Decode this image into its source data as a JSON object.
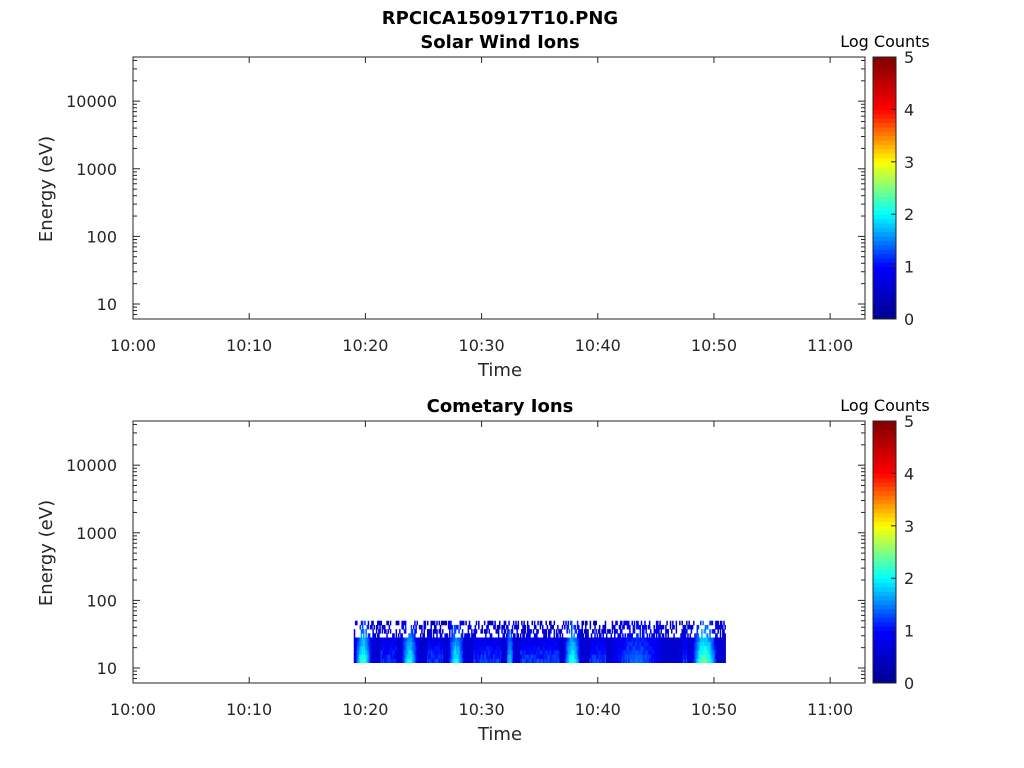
{
  "figure": {
    "title": "RPCICA150917T10.PNG"
  },
  "colormap": {
    "name": "jet",
    "stops": [
      "#00008f",
      "#0000ff",
      "#00ffff",
      "#ffff00",
      "#ff0000",
      "#800000"
    ]
  },
  "chart_data": [
    {
      "type": "heatmap",
      "title": "Solar Wind Ions",
      "xlabel": "Time",
      "ylabel": "Energy (eV)",
      "y_scale": "log",
      "ylim": [
        6,
        45000
      ],
      "xlim": [
        "10:00",
        "11:03"
      ],
      "x_ticks": [
        "10:00",
        "10:10",
        "10:20",
        "10:30",
        "10:40",
        "10:50",
        "11:00"
      ],
      "y_ticks": [
        "10",
        "100",
        "1000",
        "10000"
      ],
      "colorbar": {
        "label": "Log Counts",
        "range": [
          0,
          5
        ],
        "ticks": [
          "0",
          "1",
          "2",
          "3",
          "4",
          "5"
        ]
      },
      "data": []
    },
    {
      "type": "heatmap",
      "title": "Cometary Ions",
      "xlabel": "Time",
      "ylabel": "Energy (eV)",
      "y_scale": "log",
      "ylim": [
        6,
        45000
      ],
      "xlim": [
        "10:00",
        "11:03"
      ],
      "x_ticks": [
        "10:00",
        "10:10",
        "10:20",
        "10:30",
        "10:40",
        "10:50",
        "11:00"
      ],
      "y_ticks": [
        "10",
        "100",
        "1000",
        "10000"
      ],
      "colorbar": {
        "label": "Log Counts",
        "range": [
          0,
          5
        ],
        "ticks": [
          "0",
          "1",
          "2",
          "3",
          "4",
          "5"
        ]
      },
      "data_time_range": [
        "10:19",
        "10:51"
      ],
      "data_energy_range": [
        12,
        50
      ],
      "data": [
        {
          "start": "10:19",
          "end": "10:21",
          "max_log_counts": 2.2
        },
        {
          "start": "10:23",
          "end": "10:25",
          "max_log_counts": 2.0
        },
        {
          "start": "10:27",
          "end": "10:29",
          "max_log_counts": 2.0
        },
        {
          "start": "10:32",
          "end": "10:33",
          "max_log_counts": 1.8
        },
        {
          "start": "10:37",
          "end": "10:39",
          "max_log_counts": 2.1
        },
        {
          "start": "10:41",
          "end": "10:47",
          "max_log_counts": 1.4
        },
        {
          "start": "10:48",
          "end": "10:51",
          "max_log_counts": 2.4
        }
      ]
    }
  ]
}
